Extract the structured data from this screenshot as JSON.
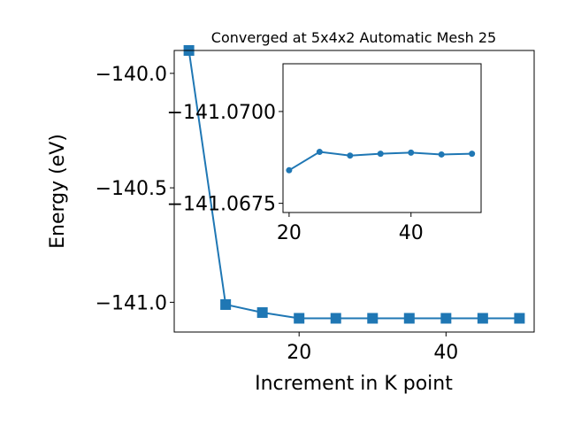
{
  "chart_data": [
    {
      "type": "line",
      "title": "Converged at 5x4x2 Automatic Mesh 25",
      "xlabel": "Increment in K point",
      "ylabel": "Energy (eV)",
      "xlim": [
        3,
        52
      ],
      "ylim": [
        -141.13,
        -139.9
      ],
      "xticks": [
        20,
        40
      ],
      "xtick_labels": [
        "20",
        "40"
      ],
      "yticks": [
        -140.0,
        -140.5,
        -141.0
      ],
      "ytick_labels": [
        "−140.0",
        "−140.5",
        "−141.0"
      ],
      "marker": "square",
      "color": "#1f77b4",
      "grid": false,
      "series": [
        {
          "x": [
            5,
            10,
            15,
            20,
            25,
            30,
            35,
            40,
            45,
            50
          ],
          "y": [
            -139.9,
            -141.01,
            -141.045,
            -141.07,
            -141.07,
            -141.07,
            -141.07,
            -141.07,
            -141.07,
            -141.07
          ]
        }
      ]
    },
    {
      "type": "line",
      "xlim": [
        19,
        51.5
      ],
      "ylim": [
        -141.06725,
        -141.0713
      ],
      "xticks": [
        20,
        40
      ],
      "xtick_labels": [
        "20",
        "40"
      ],
      "yticks": [
        -141.07,
        -141.0675
      ],
      "ytick_labels": [
        "−141.0700",
        "−141.0675"
      ],
      "marker": "circle",
      "color": "#1f77b4",
      "grid": false,
      "series": [
        {
          "x": [
            20,
            25,
            30,
            35,
            40,
            45,
            50
          ],
          "y": [
            -141.0684,
            -141.0689,
            -141.0688,
            -141.06885,
            -141.06888,
            -141.06883,
            -141.06885
          ]
        }
      ]
    }
  ]
}
